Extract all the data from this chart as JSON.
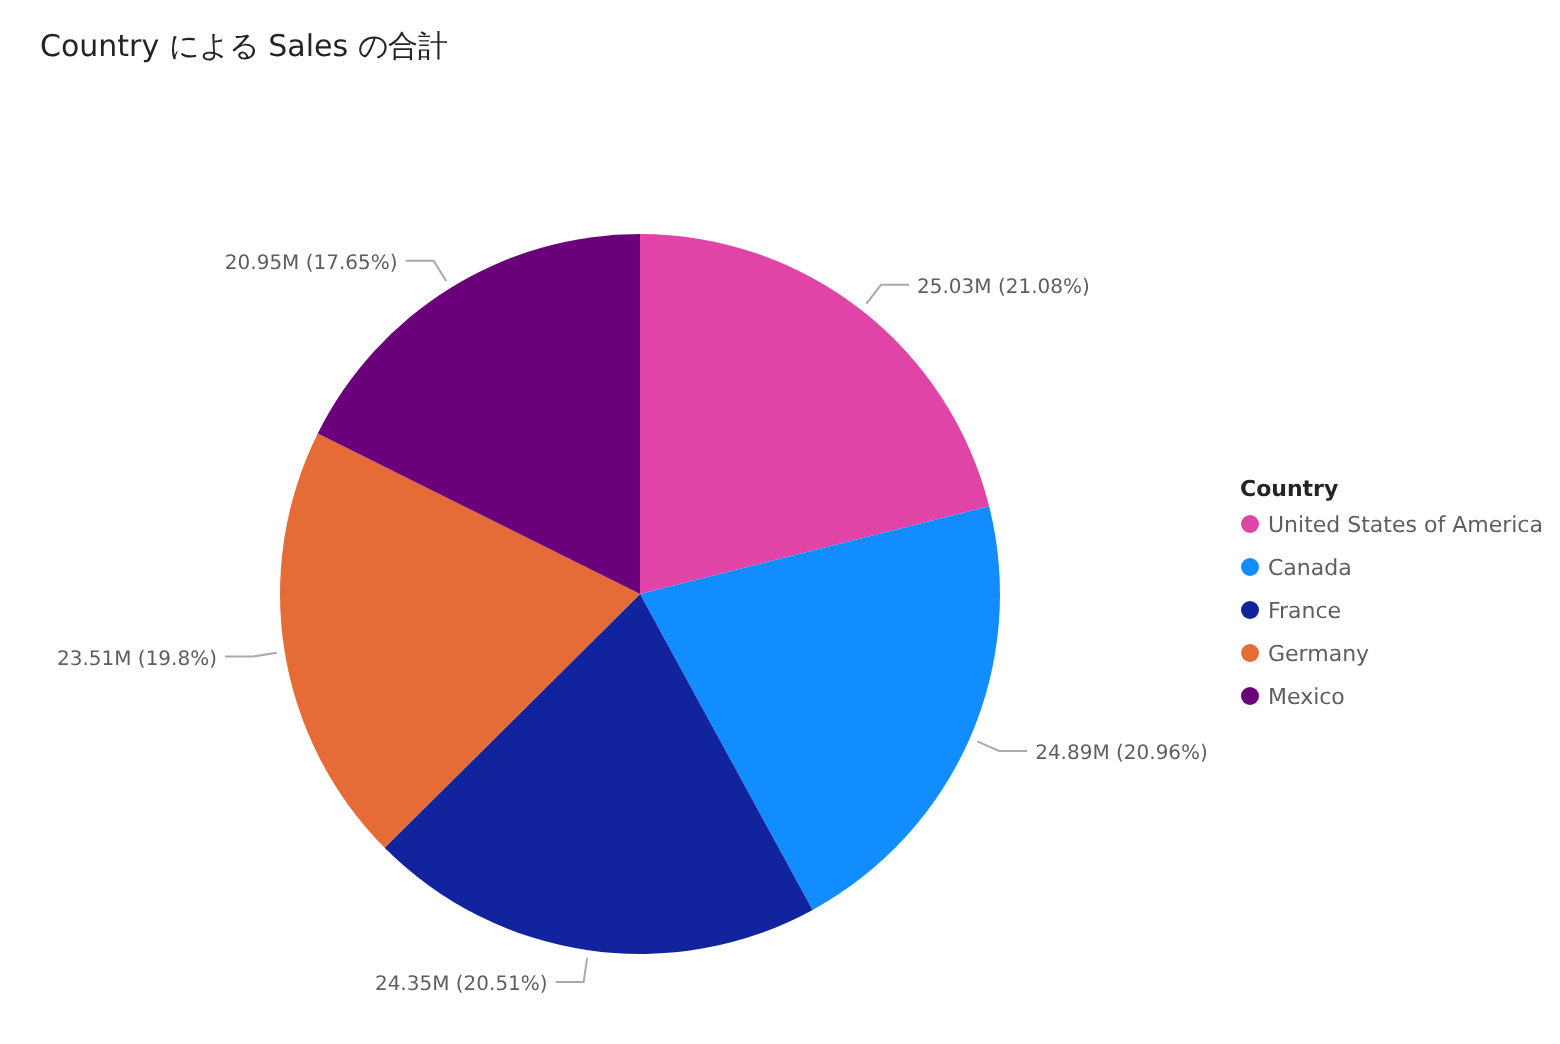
{
  "chart_data": {
    "type": "pie",
    "title": "Country による Sales の合計",
    "legend_title": "Country",
    "legend": "right",
    "categories": [
      "United States of America",
      "Canada",
      "France",
      "Germany",
      "Mexico"
    ],
    "values": [
      21.08,
      20.96,
      20.51,
      19.8,
      17.65
    ],
    "colors": [
      "#e044a7",
      "#118dff",
      "#12239e",
      "#e66c37",
      "#6b007b"
    ],
    "value_labels": [
      "25.03M (21.08%)",
      "24.89M (20.96%)",
      "24.35M (20.51%)",
      "23.51M (19.8%)",
      "20.95M (17.65%)"
    ]
  }
}
